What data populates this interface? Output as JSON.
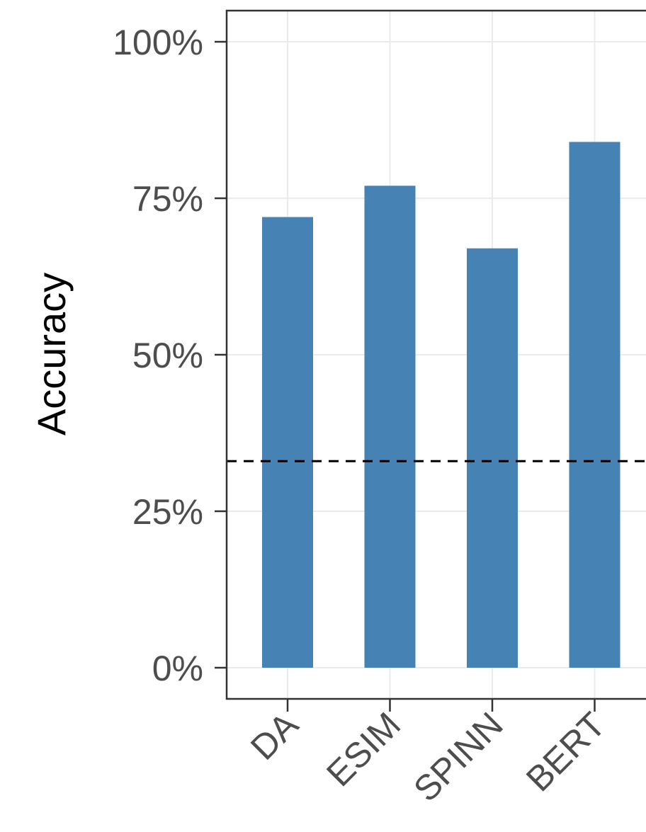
{
  "chart_data": {
    "type": "bar",
    "categories": [
      "DA",
      "ESIM",
      "SPINN",
      "BERT"
    ],
    "values": [
      72,
      77,
      67,
      84
    ],
    "value_unit": "%",
    "ylabel": "Accuracy",
    "xlabel": "",
    "ylim": [
      0,
      100
    ],
    "yticks": [
      0,
      25,
      50,
      75,
      100
    ],
    "ytick_labels": [
      "0%",
      "25%",
      "50%",
      "75%",
      "100%"
    ],
    "reference_line": {
      "value": 33,
      "style": "dashed",
      "color": "#000000"
    },
    "bar_color": "#4682B4",
    "grid": true,
    "legend": "none"
  }
}
